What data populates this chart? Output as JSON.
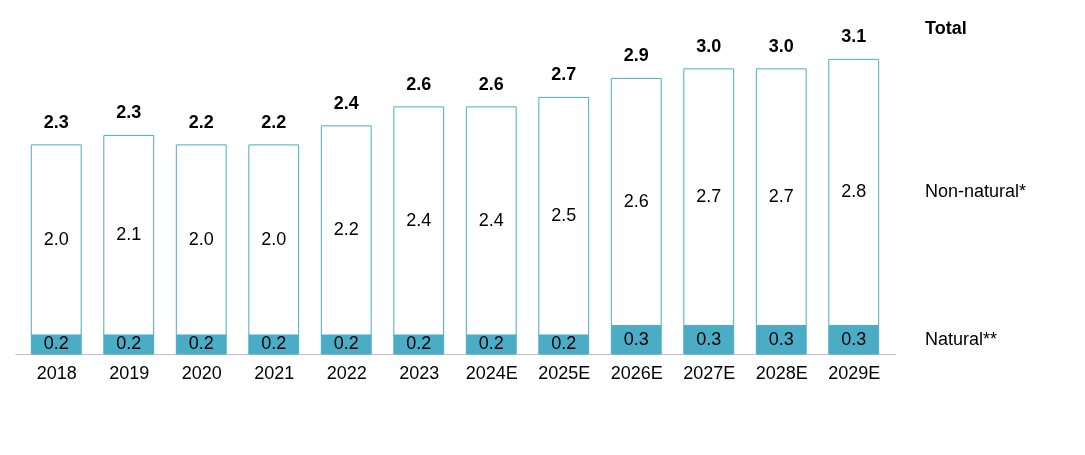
{
  "chart_data": {
    "type": "bar",
    "stacked": true,
    "tick_labels": "x",
    "grid": false,
    "categories": [
      "2018",
      "2019",
      "2020",
      "2021",
      "2022",
      "2023",
      "2024E",
      "2025E",
      "2026E",
      "2027E",
      "2028E",
      "2029E"
    ],
    "series": [
      {
        "name": "Natural**",
        "color": "#4bacc6",
        "values": [
          0.2,
          0.2,
          0.2,
          0.2,
          0.2,
          0.2,
          0.2,
          0.2,
          0.3,
          0.3,
          0.3,
          0.3
        ],
        "value_labels": [
          "0.2",
          "0.2",
          "0.2",
          "0.2",
          "0.2",
          "0.2",
          "0.2",
          "0.2",
          "0.3",
          "0.3",
          "0.3",
          "0.3"
        ]
      },
      {
        "name": "Non-natural*",
        "color": "#ffffff",
        "values": [
          2.0,
          2.1,
          2.0,
          2.0,
          2.2,
          2.4,
          2.4,
          2.5,
          2.6,
          2.7,
          2.7,
          2.8
        ],
        "value_labels": [
          "2.0",
          "2.1",
          "2.0",
          "2.0",
          "2.2",
          "2.4",
          "2.4",
          "2.5",
          "2.6",
          "2.7",
          "2.7",
          "2.8"
        ]
      }
    ],
    "totals": [
      "2.3",
      "2.3",
      "2.2",
      "2.2",
      "2.4",
      "2.6",
      "2.6",
      "2.7",
      "2.9",
      "3.0",
      "3.0",
      "3.1"
    ],
    "annotations": [
      "Total"
    ]
  }
}
